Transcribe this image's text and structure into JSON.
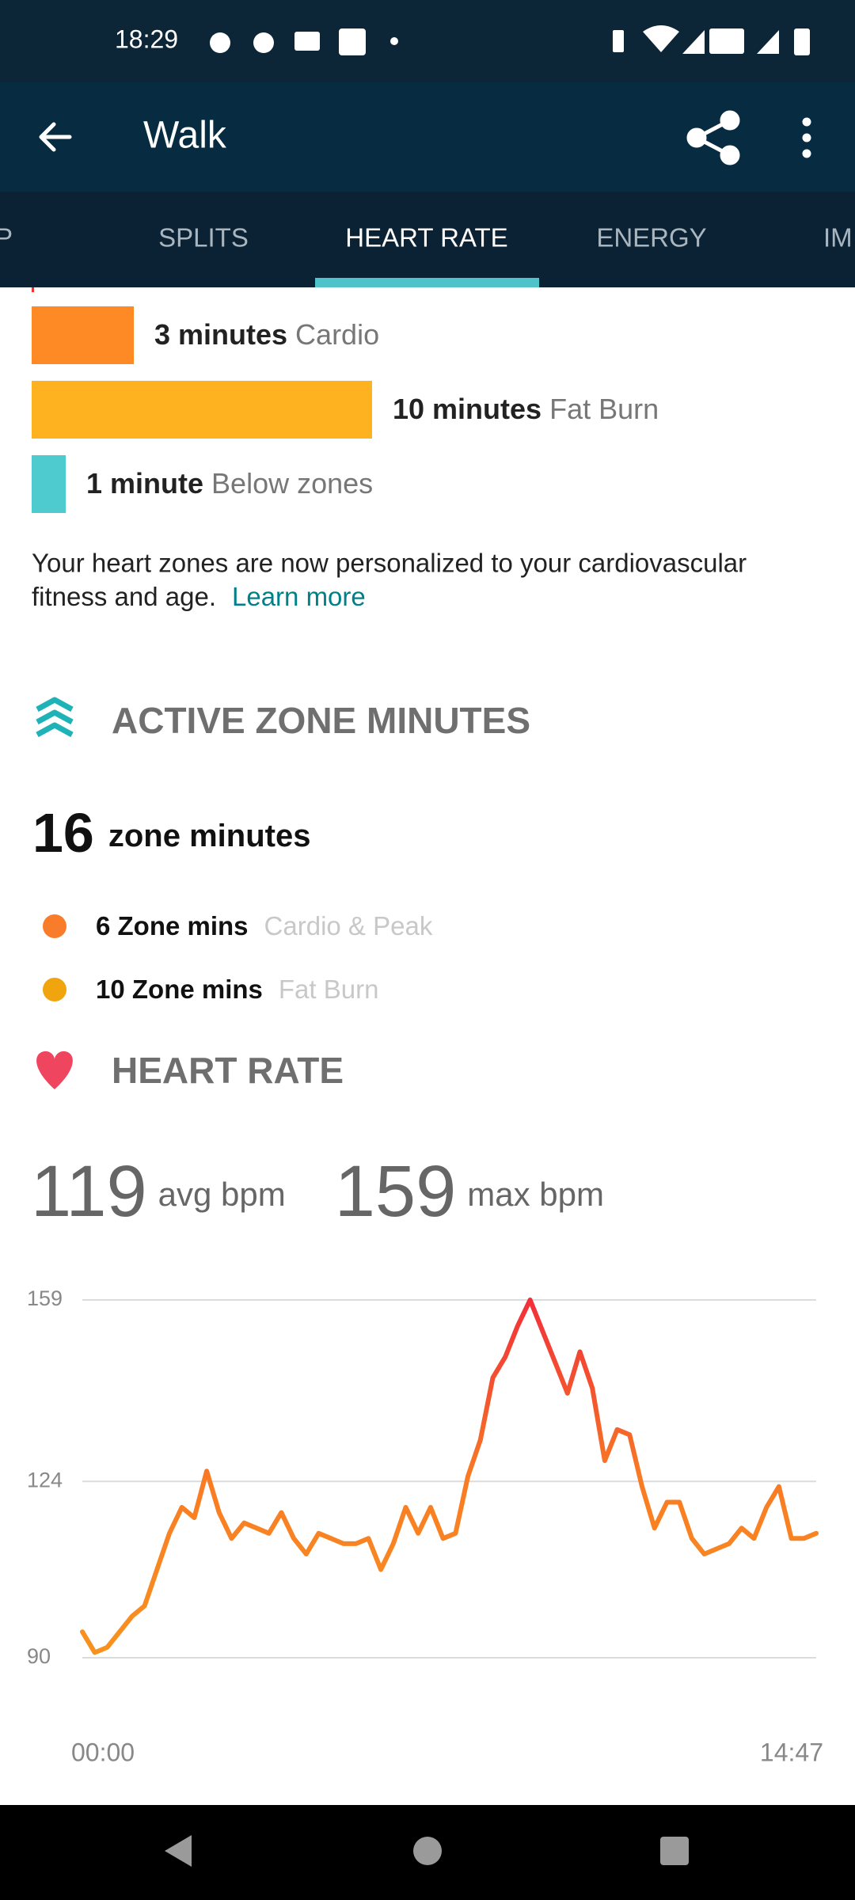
{
  "status_bar": {
    "time": "18:29"
  },
  "app_bar": {
    "title": "Walk"
  },
  "tabs": [
    "P",
    "SPLITS",
    "HEART RATE",
    "ENERGY",
    "IM"
  ],
  "zones": [
    {
      "minutes": 3,
      "minutes_label": "3 minutes",
      "zone": "Cardio",
      "color": "#fd8a24"
    },
    {
      "minutes": 10,
      "minutes_label": "10 minutes",
      "zone": "Fat Burn",
      "color": "#feb220"
    },
    {
      "minutes": 1,
      "minutes_label": "1 minute",
      "zone": "Below zones",
      "color": "#4ecbce"
    }
  ],
  "note": {
    "lines": [
      "Your heart zones are now personalized to your cardiovascular",
      "fitness and age."
    ],
    "link": "Learn more"
  },
  "active_zone_minutes": {
    "title": "ACTIVE ZONE MINUTES",
    "total": "16",
    "total_label": "zone minutes",
    "items": [
      {
        "value": "6 Zone mins",
        "label": "Cardio & Peak",
        "color": "#f97c2b"
      },
      {
        "value": "10 Zone mins",
        "label": "Fat Burn",
        "color": "#f0a50f"
      }
    ]
  },
  "heart_rate": {
    "title": "HEART RATE",
    "avg": "119",
    "avg_label": "avg bpm",
    "max": "159",
    "max_label": "max bpm",
    "chart": {
      "type": "line",
      "values": [
        95,
        91,
        92,
        95,
        98,
        100,
        107,
        114,
        119,
        117,
        126,
        118,
        113,
        116,
        115,
        114,
        118,
        113,
        110,
        114,
        113,
        112,
        112,
        113,
        107,
        112,
        119,
        114,
        119,
        113,
        114,
        125,
        132,
        144,
        148,
        154,
        159,
        153,
        147,
        141,
        149,
        142,
        128,
        134,
        133,
        123,
        115,
        120,
        120,
        113,
        110,
        111,
        112,
        115,
        113,
        119,
        123,
        113,
        113,
        114
      ],
      "ylim": [
        90,
        159
      ],
      "yticks": [
        159,
        124,
        90
      ],
      "x_labels": [
        "00:00",
        "14:47"
      ],
      "grid": true
    }
  }
}
